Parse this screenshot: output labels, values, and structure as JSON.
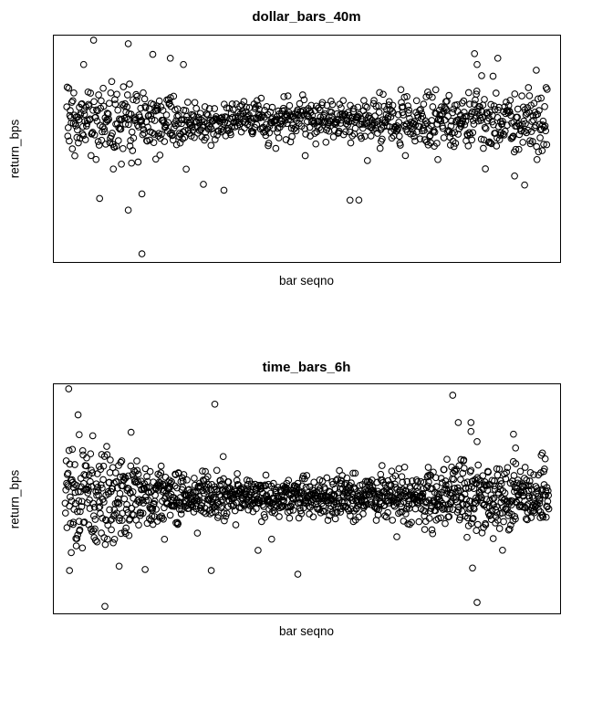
{
  "page": {
    "background": "#ffffff",
    "text_color": "#000000",
    "description_visible_elements": "two stacked scatter plots, box frames only, no axis ticks"
  },
  "chart_data": [
    {
      "type": "scatter",
      "title": "dollar_bars_40m",
      "xlabel": "bar seqno",
      "ylabel": "return_bps",
      "marker": "open-circle",
      "point_color": "#000000",
      "frame": "box",
      "axis_ticks": "none",
      "legend": "none",
      "n_points": 950,
      "seed": 1234567,
      "x_pad_norm": 0.025,
      "band_center_norm": 0.375,
      "sigma_norm": 0.051,
      "volatility_profile": [
        1.6,
        1.7,
        1.55,
        1.25,
        1.0,
        0.85,
        0.78,
        0.75,
        0.78,
        0.82,
        0.8,
        0.78,
        0.8,
        0.92,
        1.05,
        1.3,
        1.45,
        1.52,
        1.45,
        1.35
      ],
      "tail_prob": 0.045,
      "tail_scale": 2.4,
      "outliers_norm": [
        [
          0.147,
          0.036
        ],
        [
          0.059,
          0.128
        ],
        [
          0.23,
          0.1
        ],
        [
          0.256,
          0.128
        ],
        [
          0.831,
          0.08
        ],
        [
          0.836,
          0.128
        ],
        [
          0.845,
          0.177
        ],
        [
          0.953,
          0.153
        ],
        [
          0.877,
          0.1
        ],
        [
          0.174,
          0.964
        ],
        [
          0.147,
          0.771
        ],
        [
          0.336,
          0.683
        ],
        [
          0.585,
          0.727
        ],
        [
          0.174,
          0.699
        ],
        [
          0.91,
          0.62
        ],
        [
          0.93,
          0.66
        ]
      ]
    },
    {
      "type": "scatter",
      "title": "time_bars_6h",
      "xlabel": "bar seqno",
      "ylabel": "return_bps",
      "marker": "open-circle",
      "point_color": "#000000",
      "frame": "box",
      "axis_ticks": "none",
      "legend": "none",
      "n_points": 1350,
      "seed": 991731,
      "x_pad_norm": 0.022,
      "band_center_norm": 0.49,
      "sigma_norm": 0.046,
      "volatility_profile": [
        2.5,
        2.3,
        1.8,
        1.45,
        1.2,
        1.05,
        0.95,
        0.9,
        0.95,
        0.9,
        0.92,
        0.95,
        1.0,
        1.05,
        1.15,
        1.55,
        1.75,
        1.5,
        1.55,
        1.65
      ],
      "tail_prob": 0.05,
      "tail_scale": 2.2,
      "outliers_norm": [
        [
          0.788,
          0.048
        ],
        [
          0.318,
          0.087
        ],
        [
          0.799,
          0.167
        ],
        [
          0.824,
          0.167
        ],
        [
          0.824,
          0.206
        ],
        [
          0.836,
          0.25
        ],
        [
          0.908,
          0.218
        ],
        [
          0.912,
          0.278
        ],
        [
          0.827,
          0.802
        ],
        [
          0.836,
          0.952
        ],
        [
          0.031,
          0.813
        ],
        [
          0.129,
          0.794
        ],
        [
          0.311,
          0.813
        ],
        [
          0.482,
          0.829
        ],
        [
          0.05,
          0.22
        ],
        [
          0.965,
          0.3
        ]
      ]
    }
  ]
}
